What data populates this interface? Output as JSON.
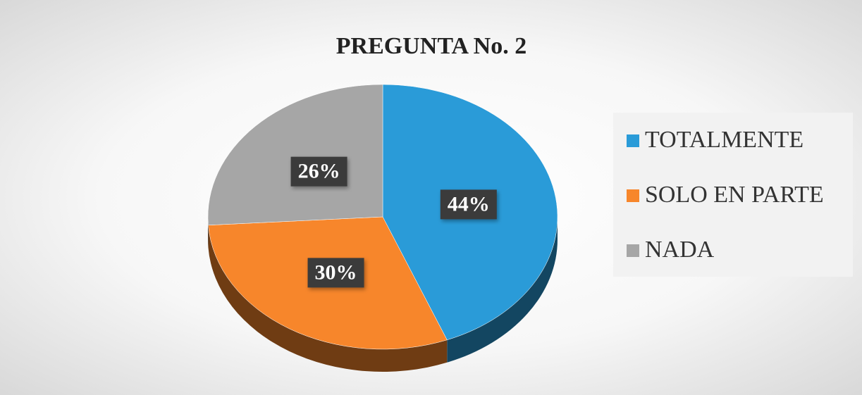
{
  "chart_data": {
    "type": "pie",
    "title": "PREGUNTA No. 2",
    "categories": [
      "TOTALMENTE",
      "SOLO EN PARTE",
      "NADA"
    ],
    "values": [
      44,
      30,
      26
    ],
    "value_labels": [
      "44%",
      "30%",
      "26%"
    ],
    "colors": [
      "#2a9bd8",
      "#f7862b",
      "#a6a6a6"
    ],
    "legend": "right"
  }
}
